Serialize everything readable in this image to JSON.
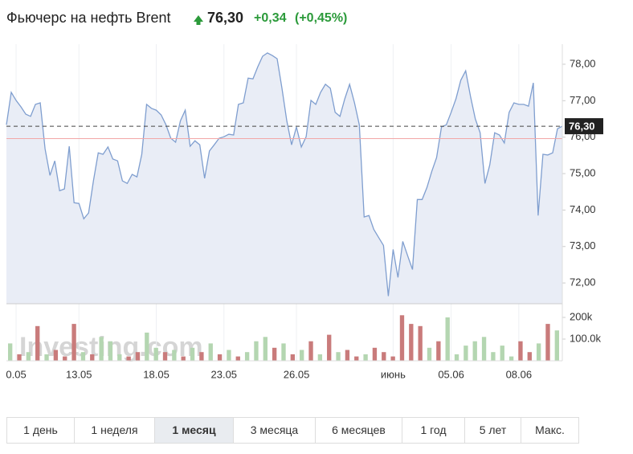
{
  "header": {
    "title": "Фьючерс на нефть Brent",
    "price": "76,30",
    "change": "+0,34",
    "change_percent": "(+0,45%)"
  },
  "watermark": "Investing.com",
  "range_buttons": [
    "1 день",
    "1 неделя",
    "1 месяц",
    "3 месяца",
    "6 месяцев",
    "1 год",
    "5 лет",
    "Макс."
  ],
  "active_range": 2,
  "chart_data": [
    {
      "type": "line",
      "color": "#7f9ecf",
      "fill": "#e9edf6",
      "categories": [
        null,
        null,
        "0.05",
        null,
        null,
        null,
        null,
        null,
        null,
        null,
        null,
        null,
        null,
        null,
        null,
        "13.05",
        null,
        null,
        null,
        null,
        null,
        null,
        null,
        null,
        null,
        null,
        null,
        null,
        null,
        null,
        null,
        "18.05",
        null,
        null,
        null,
        null,
        null,
        null,
        null,
        null,
        null,
        null,
        null,
        null,
        null,
        "23.05",
        null,
        null,
        null,
        null,
        null,
        null,
        null,
        null,
        null,
        null,
        null,
        null,
        null,
        null,
        "26.05",
        null,
        null,
        null,
        null,
        null,
        null,
        null,
        null,
        null,
        null,
        null,
        null,
        null,
        null,
        null,
        null,
        null,
        null,
        null,
        "июнь",
        null,
        null,
        null,
        null,
        null,
        null,
        null,
        null,
        null,
        null,
        null,
        "05.06",
        null,
        null,
        null,
        null,
        null,
        null,
        null,
        null,
        null,
        null,
        null,
        null,
        null,
        "08.06",
        null,
        null,
        null,
        null,
        null,
        null,
        null,
        null,
        null
      ],
      "values": [
        76.34,
        77.23,
        77.01,
        76.83,
        76.63,
        76.57,
        76.9,
        76.94,
        75.68,
        74.95,
        75.35,
        74.53,
        74.58,
        75.75,
        74.2,
        74.18,
        73.76,
        73.92,
        74.8,
        75.57,
        75.53,
        75.73,
        75.4,
        75.35,
        74.8,
        74.73,
        74.98,
        74.91,
        75.53,
        76.9,
        76.79,
        76.74,
        76.61,
        76.34,
        75.97,
        75.86,
        76.45,
        76.74,
        75.75,
        75.9,
        75.79,
        74.87,
        75.62,
        75.79,
        75.97,
        76.01,
        76.08,
        76.06,
        76.9,
        76.94,
        77.62,
        77.6,
        77.93,
        78.22,
        78.31,
        78.24,
        78.15,
        77.34,
        76.45,
        75.79,
        76.28,
        75.73,
        76.01,
        77.01,
        76.9,
        77.23,
        77.45,
        77.34,
        76.68,
        76.57,
        77.05,
        77.45,
        76.94,
        76.34,
        73.81,
        73.85,
        73.47,
        73.25,
        73.03,
        71.64,
        72.92,
        72.15,
        73.14,
        72.75,
        72.37,
        74.29,
        74.29,
        74.62,
        75.06,
        75.44,
        76.28,
        76.34,
        76.68,
        77.05,
        77.56,
        77.82,
        77.12,
        76.5,
        76.12,
        74.73,
        75.24,
        76.12,
        76.06,
        75.84,
        76.68,
        76.94,
        76.9,
        76.9,
        76.85,
        77.49,
        73.85,
        75.53,
        75.51,
        75.57,
        76.23,
        76.3
      ],
      "ylim": [
        71.43,
        78.55
      ],
      "yticks": [
        {
          "value": 72,
          "label": "72,00"
        },
        {
          "value": 73,
          "label": "73,00"
        },
        {
          "value": 74,
          "label": "74,00"
        },
        {
          "value": 75,
          "label": "75,00"
        },
        {
          "value": 76,
          "label": "76,00"
        },
        {
          "value": 77,
          "label": "77,00"
        },
        {
          "value": 78,
          "label": "78,00"
        }
      ],
      "current_price": {
        "value": 76.3,
        "label": "76,30"
      },
      "previous_close": 75.96,
      "grid": true
    },
    {
      "type": "bar",
      "values": [
        80000,
        30000,
        40000,
        160000,
        30000,
        50000,
        20000,
        170000,
        40000,
        30000,
        110000,
        90000,
        30000,
        20000,
        40000,
        130000,
        60000,
        40000,
        50000,
        20000,
        60000,
        40000,
        80000,
        30000,
        50000,
        20000,
        40000,
        90000,
        110000,
        60000,
        80000,
        30000,
        50000,
        90000,
        30000,
        120000,
        40000,
        50000,
        20000,
        30000,
        60000,
        40000,
        20000,
        210000,
        170000,
        160000,
        60000,
        90000,
        200000,
        30000,
        70000,
        90000,
        110000,
        40000,
        70000,
        20000,
        90000,
        40000,
        80000,
        170000,
        140000
      ],
      "colors": [
        "#b4d6b1",
        "#c97b7b",
        "#b4d6b1",
        "#c97b7b",
        "#b4d6b1",
        "#c97b7b",
        "#c97b7b",
        "#c97b7b",
        "#b4d6b1",
        "#c97b7b",
        "#b4d6b1",
        "#b4d6b1",
        "#b4d6b1",
        "#c97b7b",
        "#c97b7b",
        "#b4d6b1",
        "#b4d6b1",
        "#c97b7b",
        "#b4d6b1",
        "#c97b7b",
        "#b4d6b1",
        "#c97b7b",
        "#b4d6b1",
        "#c97b7b",
        "#b4d6b1",
        "#c97b7b",
        "#b4d6b1",
        "#b4d6b1",
        "#b4d6b1",
        "#c97b7b",
        "#b4d6b1",
        "#c97b7b",
        "#b4d6b1",
        "#c97b7b",
        "#b4d6b1",
        "#c97b7b",
        "#b4d6b1",
        "#c97b7b",
        "#c97b7b",
        "#b4d6b1",
        "#c97b7b",
        "#c97b7b",
        "#c97b7b",
        "#c97b7b",
        "#c97b7b",
        "#c97b7b",
        "#b4d6b1",
        "#c97b7b",
        "#b4d6b1",
        "#b4d6b1",
        "#b4d6b1",
        "#b4d6b1",
        "#b4d6b1",
        "#b4d6b1",
        "#b4d6b1",
        "#b4d6b1",
        "#c97b7b",
        "#c97b7b",
        "#b4d6b1",
        "#c97b7b",
        "#b4d6b1"
      ],
      "ylim": [
        0,
        263000
      ],
      "yticks": [
        {
          "value": 100000,
          "label": "100.0k"
        },
        {
          "value": 200000,
          "label": "200k"
        }
      ]
    }
  ]
}
